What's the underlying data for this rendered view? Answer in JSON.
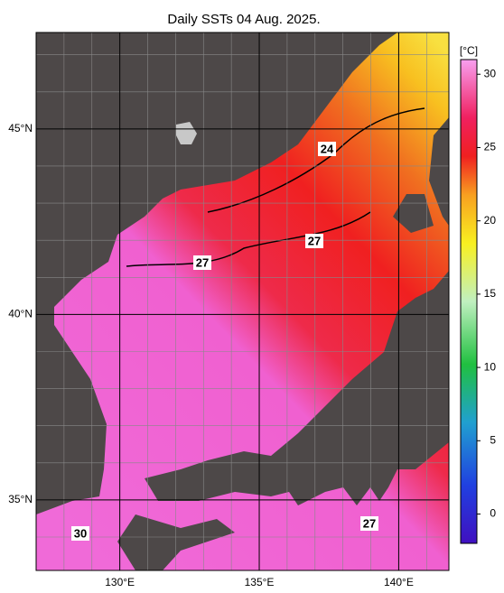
{
  "title": "Daily SSTs 04 Aug. 2025.",
  "map": {
    "latlim": [
      33.1,
      47.6
    ],
    "lonlim": [
      127,
      141.8
    ],
    "lat_ticks": [
      {
        "value": 45,
        "label": "45°N"
      },
      {
        "value": 40,
        "label": "40°N"
      },
      {
        "value": 35,
        "label": "35°N"
      }
    ],
    "lon_ticks": [
      {
        "value": 130,
        "label": "130°E"
      },
      {
        "value": 135,
        "label": "135°E"
      },
      {
        "value": 140,
        "label": "140°E"
      }
    ],
    "contour_labels": [
      "24",
      "27",
      "27",
      "27",
      "30"
    ]
  },
  "colorbar": {
    "unit": "[°C]",
    "range": [
      -2,
      31
    ],
    "ticks": [
      0,
      5,
      10,
      15,
      20,
      25,
      30
    ]
  }
}
